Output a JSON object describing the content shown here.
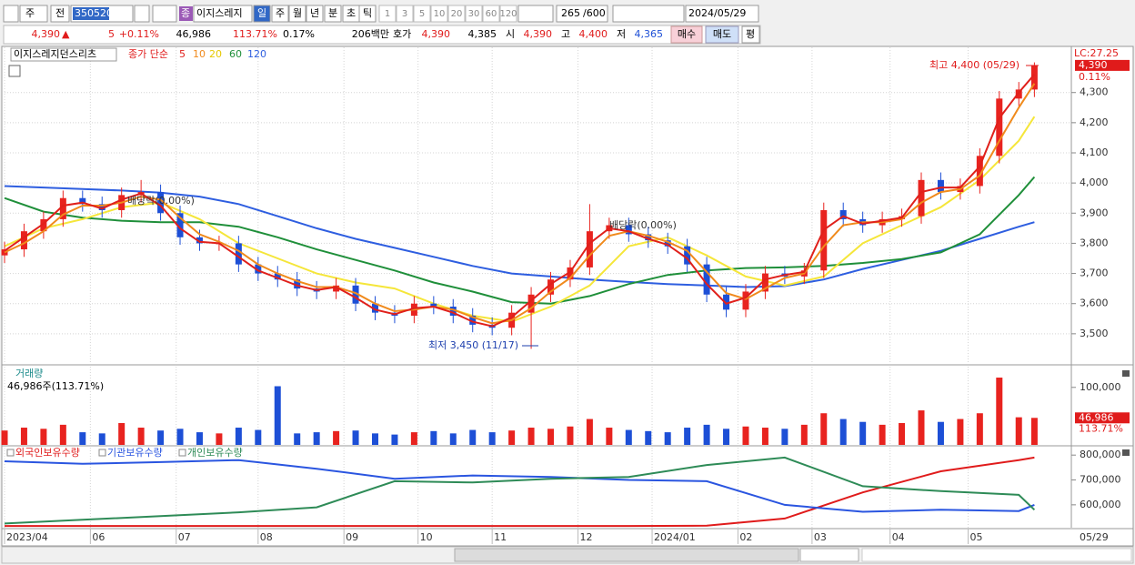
{
  "toolbar": {
    "period_type": "주",
    "prev": "전",
    "code": "350520",
    "badge": "종",
    "name": "이지스레지",
    "intervals": [
      "일",
      "주",
      "월",
      "년",
      "분",
      "초",
      "틱"
    ],
    "counts": [
      "1",
      "3",
      "5",
      "10",
      "20",
      "30",
      "60",
      "120"
    ],
    "bars": "265",
    "bars_max": "/600",
    "date": "2024/05/29"
  },
  "quote": {
    "price": "4,390",
    "arrow": "▲",
    "change": "5",
    "change_pct": "+0.11%",
    "volume": "46,986",
    "volume_ratio": "113.71%",
    "turnover": "0.17%",
    "amount": "206백만",
    "ask_label": "호가",
    "ask": "4,390",
    "bid": "4,385",
    "open_label": "시",
    "open": "4,390",
    "high_label": "고",
    "high": "4,400",
    "low_label": "저",
    "low": "4,365",
    "buy": "매수",
    "sell": "매도",
    "avg": "평"
  },
  "chart_data": [
    {
      "type": "candlestick",
      "title": "이지스레지던스리츠",
      "subtitle": "종가 단순",
      "x": [
        0,
        5,
        10,
        15,
        20,
        25,
        30,
        35,
        40,
        45,
        50,
        55,
        60,
        65,
        70,
        75,
        80,
        85,
        90,
        95,
        100,
        105,
        110,
        115,
        120,
        125,
        130,
        135,
        140,
        145,
        150,
        155,
        160,
        165,
        170,
        175,
        180,
        185,
        190,
        195,
        200,
        205,
        210,
        215,
        220,
        225,
        230,
        235,
        240,
        245,
        250,
        255,
        260,
        264
      ],
      "open": [
        3760,
        3780,
        3840,
        3880,
        3950,
        3930,
        3910,
        3960,
        3970,
        3900,
        3820,
        3800,
        3800,
        3730,
        3700,
        3680,
        3650,
        3640,
        3660,
        3600,
        3570,
        3560,
        3600,
        3590,
        3560,
        3530,
        3520,
        3570,
        3630,
        3680,
        3720,
        3840,
        3860,
        3830,
        3810,
        3790,
        3730,
        3630,
        3580,
        3640,
        3700,
        3690,
        3710,
        3910,
        3880,
        3860,
        3880,
        3890,
        4010,
        3970,
        3990,
        4090,
        4280,
        4310
      ],
      "high": [
        3805,
        3865,
        3905,
        3975,
        3975,
        3955,
        3985,
        4010,
        3995,
        3925,
        3845,
        3825,
        3825,
        3755,
        3725,
        3705,
        3675,
        3685,
        3685,
        3625,
        3595,
        3625,
        3625,
        3615,
        3585,
        3555,
        3595,
        3655,
        3705,
        3745,
        3930,
        3885,
        3885,
        3855,
        3835,
        3815,
        3755,
        3655,
        3665,
        3725,
        3725,
        3735,
        3935,
        3935,
        3905,
        3905,
        3915,
        4035,
        4035,
        4015,
        4115,
        4305,
        4335,
        4400
      ],
      "low": [
        3735,
        3755,
        3815,
        3855,
        3905,
        3885,
        3885,
        3935,
        3875,
        3795,
        3775,
        3775,
        3705,
        3675,
        3655,
        3625,
        3615,
        3615,
        3575,
        3545,
        3535,
        3535,
        3565,
        3535,
        3505,
        3495,
        3495,
        3450,
        3605,
        3655,
        3695,
        3815,
        3805,
        3785,
        3765,
        3705,
        3605,
        3555,
        3555,
        3615,
        3665,
        3665,
        3685,
        3855,
        3835,
        3835,
        3855,
        3865,
        3945,
        3945,
        3965,
        4065,
        4255,
        4285
      ],
      "close": [
        3780,
        3840,
        3880,
        3950,
        3930,
        3910,
        3960,
        3970,
        3900,
        3820,
        3800,
        3800,
        3730,
        3700,
        3680,
        3650,
        3640,
        3660,
        3600,
        3570,
        3560,
        3600,
        3590,
        3560,
        3530,
        3520,
        3570,
        3630,
        3680,
        3720,
        3840,
        3860,
        3830,
        3810,
        3790,
        3730,
        3630,
        3580,
        3640,
        3700,
        3690,
        3710,
        3910,
        3880,
        3860,
        3880,
        3890,
        4010,
        3970,
        3990,
        4090,
        4280,
        4310,
        4390
      ],
      "up_color": "#e8231f",
      "down_color": "#1d4fd6",
      "series": [
        {
          "name": "5",
          "color": "#e0201b",
          "x": [
            0,
            5,
            10,
            15,
            20,
            25,
            30,
            35,
            40,
            45,
            50,
            55,
            60,
            65,
            70,
            75,
            80,
            85,
            90,
            95,
            100,
            105,
            110,
            115,
            120,
            125,
            130,
            135,
            140,
            145,
            150,
            155,
            160,
            165,
            170,
            175,
            180,
            185,
            190,
            195,
            200,
            205,
            210,
            215,
            220,
            225,
            230,
            235,
            240,
            245,
            250,
            255,
            260,
            264
          ],
          "values": [
            3775,
            3820,
            3865,
            3925,
            3935,
            3915,
            3945,
            3965,
            3925,
            3850,
            3805,
            3800,
            3755,
            3710,
            3685,
            3660,
            3645,
            3655,
            3620,
            3580,
            3565,
            3585,
            3590,
            3570,
            3540,
            3525,
            3555,
            3610,
            3665,
            3705,
            3800,
            3850,
            3840,
            3815,
            3795,
            3750,
            3665,
            3600,
            3620,
            3680,
            3695,
            3705,
            3845,
            3890,
            3865,
            3875,
            3885,
            3970,
            3985,
            3985,
            4055,
            4215,
            4300,
            4360
          ]
        },
        {
          "name": "10",
          "color": "#f08a1c",
          "x": [
            0,
            5,
            10,
            15,
            20,
            25,
            30,
            35,
            40,
            45,
            50,
            55,
            60,
            65,
            70,
            75,
            80,
            85,
            90,
            95,
            100,
            105,
            110,
            115,
            120,
            125,
            130,
            135,
            140,
            145,
            150,
            155,
            160,
            165,
            170,
            175,
            180,
            185,
            190,
            195,
            200,
            205,
            210,
            215,
            220,
            225,
            230,
            235,
            240,
            245,
            250,
            255,
            260,
            264
          ],
          "values": [
            3770,
            3800,
            3840,
            3895,
            3925,
            3925,
            3935,
            3955,
            3945,
            3885,
            3830,
            3805,
            3775,
            3730,
            3700,
            3675,
            3655,
            3655,
            3635,
            3600,
            3575,
            3580,
            3590,
            3580,
            3555,
            3535,
            3545,
            3585,
            3640,
            3685,
            3760,
            3825,
            3840,
            3825,
            3805,
            3775,
            3705,
            3635,
            3615,
            3650,
            3685,
            3700,
            3790,
            3860,
            3870,
            3870,
            3880,
            3935,
            3970,
            3980,
            4025,
            4140,
            4250,
            4330
          ]
        },
        {
          "name": "20",
          "color": "#f5e63a",
          "x": [
            0,
            10,
            20,
            30,
            40,
            50,
            60,
            70,
            80,
            90,
            100,
            110,
            120,
            130,
            140,
            150,
            160,
            170,
            180,
            190,
            200,
            210,
            220,
            230,
            240,
            250,
            260,
            264
          ],
          "values": [
            3790,
            3850,
            3880,
            3920,
            3935,
            3880,
            3800,
            3750,
            3700,
            3670,
            3650,
            3600,
            3560,
            3540,
            3590,
            3660,
            3790,
            3820,
            3760,
            3690,
            3660,
            3690,
            3800,
            3860,
            3920,
            4010,
            4140,
            4220
          ]
        },
        {
          "name": "60",
          "color": "#1f8f3a",
          "x": [
            0,
            10,
            20,
            30,
            40,
            50,
            60,
            70,
            80,
            90,
            100,
            110,
            120,
            130,
            140,
            150,
            160,
            170,
            180,
            190,
            200,
            210,
            220,
            230,
            240,
            250,
            260,
            264
          ],
          "values": [
            3950,
            3905,
            3885,
            3875,
            3870,
            3870,
            3855,
            3820,
            3780,
            3745,
            3710,
            3670,
            3640,
            3605,
            3600,
            3625,
            3665,
            3695,
            3710,
            3718,
            3720,
            3725,
            3735,
            3748,
            3770,
            3830,
            3960,
            4020
          ]
        },
        {
          "name": "120",
          "color": "#2e5ee0",
          "x": [
            0,
            10,
            20,
            30,
            40,
            50,
            60,
            70,
            80,
            90,
            100,
            110,
            120,
            130,
            140,
            150,
            160,
            170,
            180,
            190,
            200,
            210,
            220,
            230,
            240,
            250,
            260,
            264
          ],
          "values": [
            3990,
            3985,
            3980,
            3975,
            3968,
            3955,
            3930,
            3890,
            3850,
            3815,
            3785,
            3755,
            3725,
            3700,
            3690,
            3680,
            3672,
            3665,
            3660,
            3655,
            3658,
            3680,
            3715,
            3745,
            3775,
            3815,
            3855,
            3870
          ]
        }
      ],
      "xlim": [
        0,
        273
      ],
      "ylim": [
        3400,
        4450
      ],
      "yticks": [
        {
          "value": 3500,
          "label": "3,500"
        },
        {
          "value": 3600,
          "label": "3,600"
        },
        {
          "value": 3700,
          "label": "3,700"
        },
        {
          "value": 3800,
          "label": "3,800"
        },
        {
          "value": 3900,
          "label": "3,900"
        },
        {
          "value": 4000,
          "label": "4,000"
        },
        {
          "value": 4100,
          "label": "4,100"
        },
        {
          "value": 4200,
          "label": "4,200"
        },
        {
          "value": 4300,
          "label": "4,300"
        }
      ],
      "grid": true,
      "annotations": [
        "최고 4,400 (05/29)",
        "최저 3,450 (11/17)",
        "배당락(0.00%)",
        "배당락(0.00%)"
      ],
      "markers": {
        "lc": "LC:27.25",
        "last_price": "4,390",
        "change": "0.11%"
      }
    },
    {
      "type": "bar",
      "title": "거래량",
      "subtitle": "46,986주(113.71%)",
      "x": [
        0,
        5,
        10,
        15,
        20,
        25,
        30,
        35,
        40,
        45,
        50,
        55,
        60,
        65,
        70,
        75,
        80,
        85,
        90,
        95,
        100,
        105,
        110,
        115,
        120,
        125,
        130,
        135,
        140,
        145,
        150,
        155,
        160,
        165,
        170,
        175,
        180,
        185,
        190,
        195,
        200,
        205,
        210,
        215,
        220,
        225,
        230,
        235,
        240,
        245,
        250,
        255,
        260,
        264
      ],
      "values": [
        25000,
        30000,
        28000,
        35000,
        22000,
        20000,
        38000,
        30000,
        25000,
        28000,
        22000,
        20000,
        30000,
        26000,
        102000,
        20000,
        22000,
        24000,
        25000,
        20000,
        18000,
        22000,
        24000,
        20000,
        26000,
        22000,
        25000,
        30000,
        28000,
        32000,
        45000,
        30000,
        26000,
        24000,
        22000,
        30000,
        35000,
        28000,
        32000,
        30000,
        28000,
        35000,
        55000,
        45000,
        40000,
        35000,
        38000,
        60000,
        40000,
        45000,
        55000,
        117000,
        48000,
        46986
      ],
      "xlim": [
        0,
        273
      ],
      "ylim": [
        0,
        136000
      ],
      "yticks": [
        {
          "value": 100000,
          "label": "100,000"
        }
      ],
      "markers": {
        "last_value": "46,986",
        "last_ratio": "113.71%"
      }
    },
    {
      "type": "line",
      "series": [
        {
          "name": "외국인보유수량",
          "color": "#e01b1b",
          "x": [
            0,
            20,
            40,
            60,
            80,
            100,
            120,
            140,
            160,
            180,
            200,
            220,
            240,
            260,
            264
          ],
          "values": [
            515000,
            515000,
            515000,
            515000,
            515000,
            515000,
            515000,
            515000,
            515000,
            516000,
            545000,
            650000,
            735000,
            780000,
            790000
          ]
        },
        {
          "name": "기관보유수량",
          "color": "#2a55e0",
          "x": [
            0,
            20,
            40,
            60,
            80,
            100,
            120,
            140,
            160,
            180,
            200,
            220,
            240,
            260,
            264
          ],
          "values": [
            775000,
            765000,
            772000,
            780000,
            745000,
            705000,
            718000,
            712000,
            700000,
            695000,
            600000,
            572000,
            580000,
            575000,
            600000
          ]
        },
        {
          "name": "개인보유수량",
          "color": "#2e8b57",
          "x": [
            0,
            20,
            40,
            60,
            80,
            100,
            120,
            140,
            160,
            180,
            200,
            220,
            240,
            260,
            264
          ],
          "values": [
            525000,
            540000,
            555000,
            570000,
            590000,
            695000,
            690000,
            705000,
            712000,
            760000,
            790000,
            675000,
            655000,
            640000,
            580000
          ]
        }
      ],
      "xlim": [
        0,
        273
      ],
      "ylim": [
        508000,
        830000
      ],
      "yticks": [
        {
          "value": 600000,
          "label": "600,000"
        },
        {
          "value": 700000,
          "label": "700,000"
        },
        {
          "value": 800000,
          "label": "800,000"
        }
      ],
      "xticks": [
        {
          "value": 0,
          "label": "2023/04"
        },
        {
          "value": 22,
          "label": "06"
        },
        {
          "value": 44,
          "label": "07"
        },
        {
          "value": 65,
          "label": "08"
        },
        {
          "value": 87,
          "label": "09"
        },
        {
          "value": 106,
          "label": "10"
        },
        {
          "value": 125,
          "label": "11"
        },
        {
          "value": 147,
          "label": "12"
        },
        {
          "value": 166,
          "label": "2024/01"
        },
        {
          "value": 188,
          "label": "02"
        },
        {
          "value": 207,
          "label": "03"
        },
        {
          "value": 227,
          "label": "04"
        },
        {
          "value": 247,
          "label": "05"
        }
      ],
      "last_date": "05/29"
    }
  ]
}
